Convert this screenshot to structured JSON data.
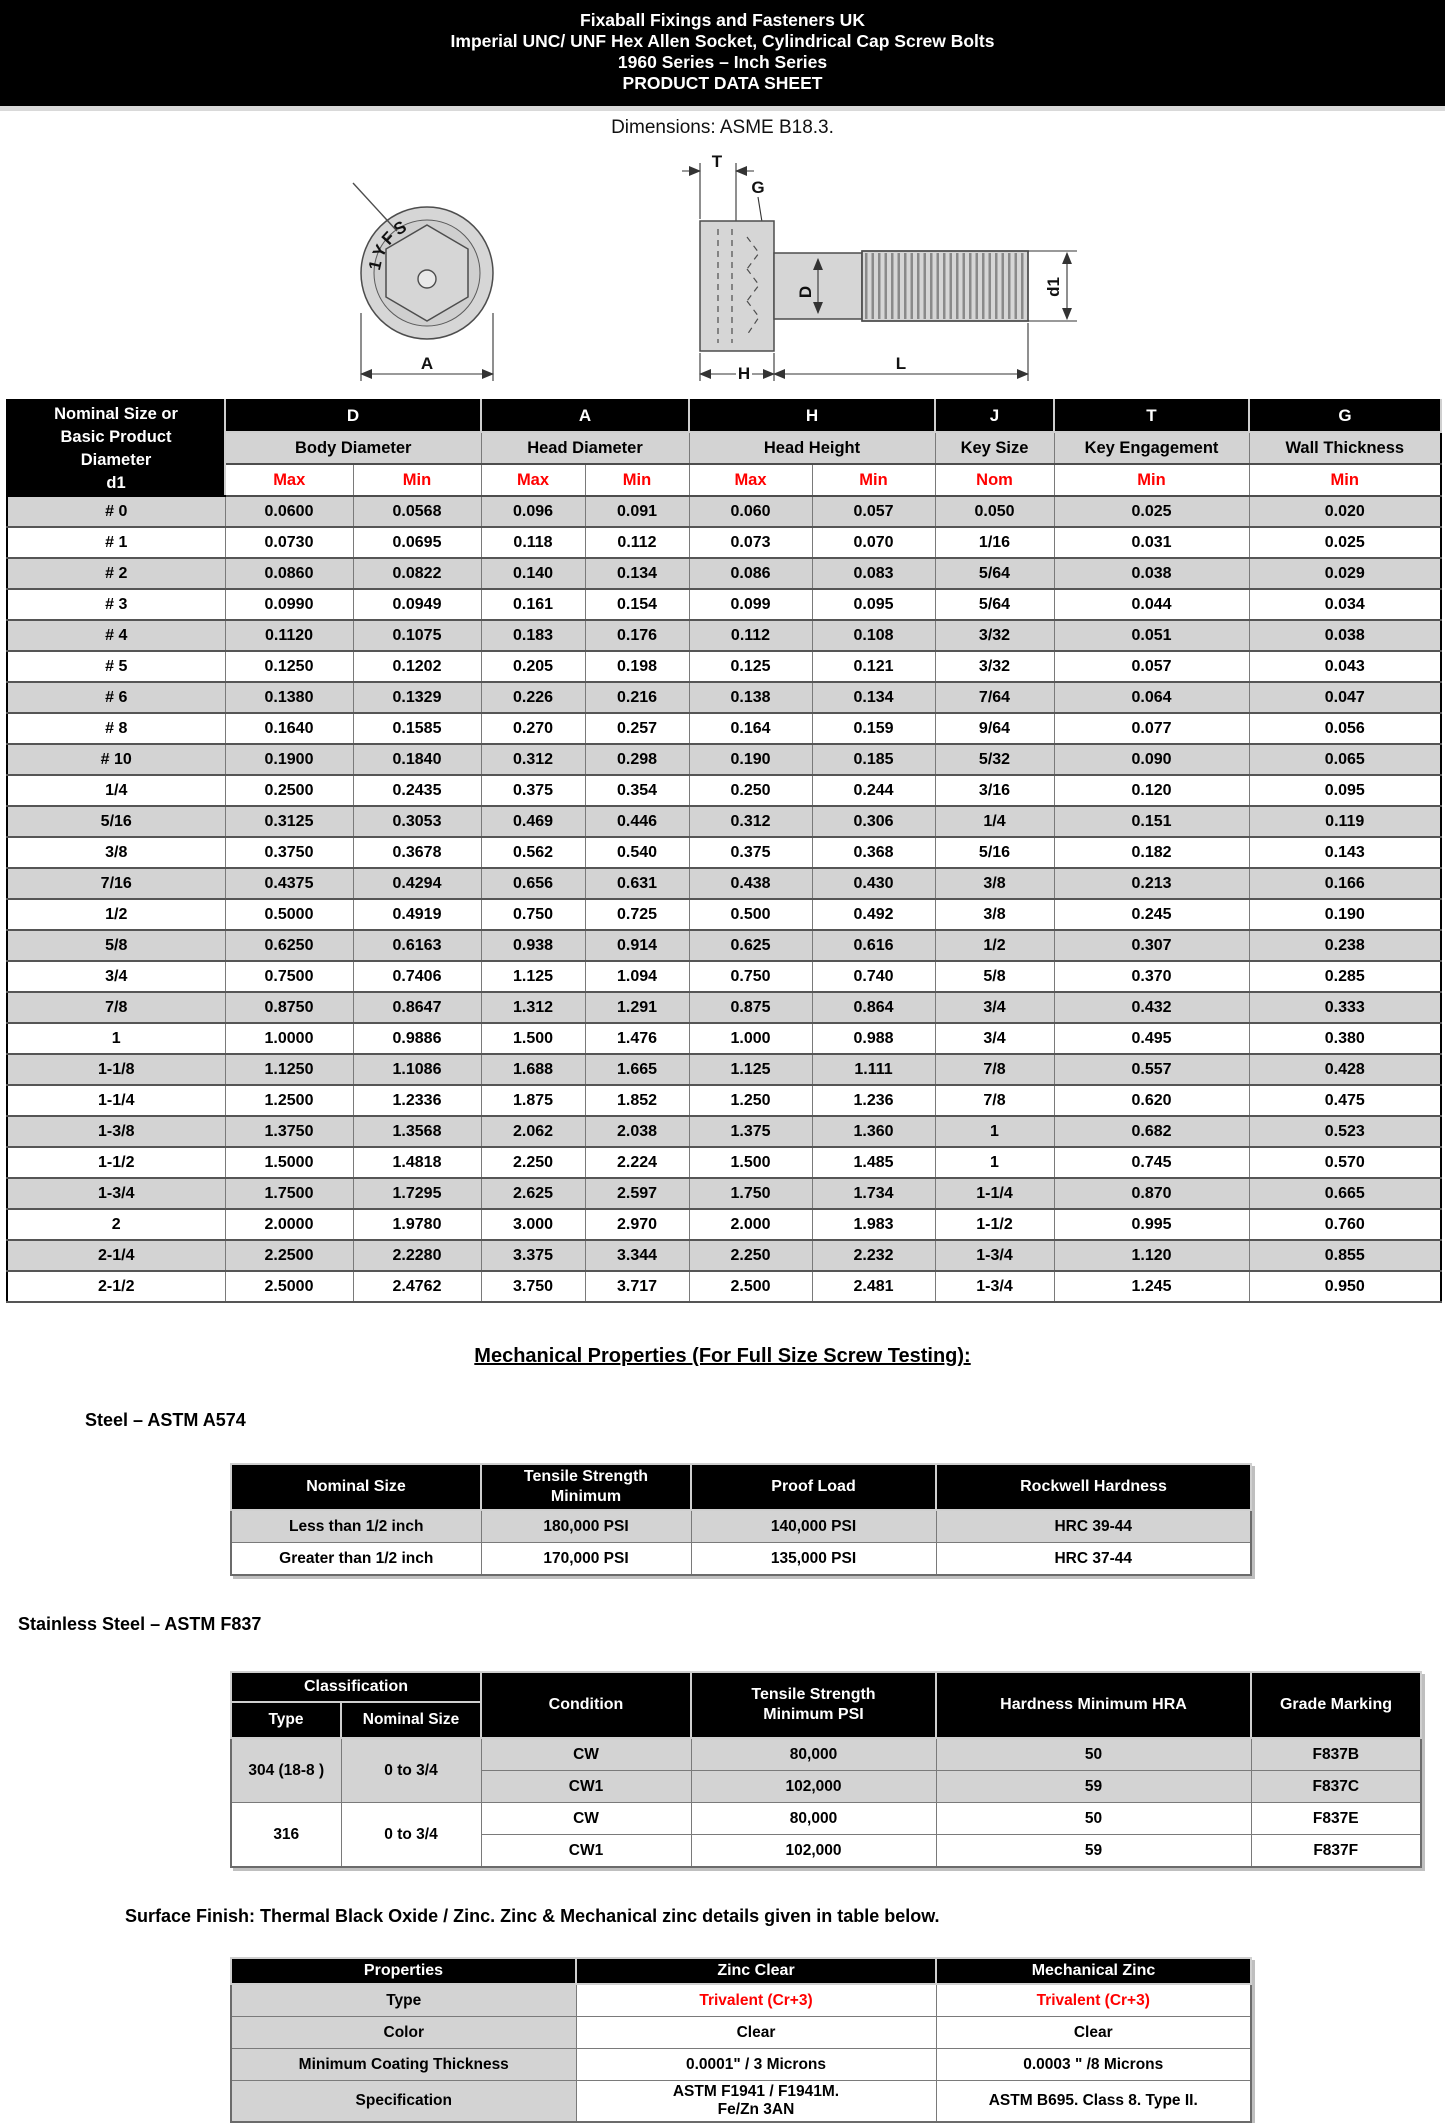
{
  "banner": {
    "lines": [
      "Fixaball Fixings and Fasteners UK",
      "Imperial UNC/ UNF Hex Allen Socket, Cylindrical Cap Screw Bolts",
      "1960 Series – Inch Series",
      "PRODUCT DATA SHEET"
    ]
  },
  "subtitle": "Dimensions: ASME B18.3.",
  "drawing": {
    "head_marking": "1YFS",
    "labels": {
      "t": "T",
      "g": "G",
      "d": "D",
      "d1": "d1",
      "a": "A",
      "h": "H",
      "l": "L"
    }
  },
  "dim_table": {
    "corner_lines": [
      "Nominal Size or",
      "Basic Product",
      "Diameter",
      "d1"
    ],
    "groups": [
      {
        "letter": "D",
        "name": "Body Diameter",
        "subs": [
          "Max",
          "Min"
        ]
      },
      {
        "letter": "A",
        "name": "Head Diameter",
        "subs": [
          "Max",
          "Min"
        ]
      },
      {
        "letter": "H",
        "name": "Head Height",
        "subs": [
          "Max",
          "Min"
        ]
      },
      {
        "letter": "J",
        "name": "Key Size",
        "subs": [
          "Nom"
        ]
      },
      {
        "letter": "T",
        "name": "Key Engagement",
        "subs": [
          "Min"
        ]
      },
      {
        "letter": "G",
        "name": "Wall Thickness",
        "subs": [
          "Min"
        ]
      }
    ],
    "rows": [
      [
        "# 0",
        "0.0600",
        "0.0568",
        "0.096",
        "0.091",
        "0.060",
        "0.057",
        "0.050",
        "0.025",
        "0.020"
      ],
      [
        "# 1",
        "0.0730",
        "0.0695",
        "0.118",
        "0.112",
        "0.073",
        "0.070",
        "1/16",
        "0.031",
        "0.025"
      ],
      [
        "# 2",
        "0.0860",
        "0.0822",
        "0.140",
        "0.134",
        "0.086",
        "0.083",
        "5/64",
        "0.038",
        "0.029"
      ],
      [
        "# 3",
        "0.0990",
        "0.0949",
        "0.161",
        "0.154",
        "0.099",
        "0.095",
        "5/64",
        "0.044",
        "0.034"
      ],
      [
        "# 4",
        "0.1120",
        "0.1075",
        "0.183",
        "0.176",
        "0.112",
        "0.108",
        "3/32",
        "0.051",
        "0.038"
      ],
      [
        "# 5",
        "0.1250",
        "0.1202",
        "0.205",
        "0.198",
        "0.125",
        "0.121",
        "3/32",
        "0.057",
        "0.043"
      ],
      [
        "# 6",
        "0.1380",
        "0.1329",
        "0.226",
        "0.216",
        "0.138",
        "0.134",
        "7/64",
        "0.064",
        "0.047"
      ],
      [
        "# 8",
        "0.1640",
        "0.1585",
        "0.270",
        "0.257",
        "0.164",
        "0.159",
        "9/64",
        "0.077",
        "0.056"
      ],
      [
        "# 10",
        "0.1900",
        "0.1840",
        "0.312",
        "0.298",
        "0.190",
        "0.185",
        "5/32",
        "0.090",
        "0.065"
      ],
      [
        "1/4",
        "0.2500",
        "0.2435",
        "0.375",
        "0.354",
        "0.250",
        "0.244",
        "3/16",
        "0.120",
        "0.095"
      ],
      [
        "5/16",
        "0.3125",
        "0.3053",
        "0.469",
        "0.446",
        "0.312",
        "0.306",
        "1/4",
        "0.151",
        "0.119"
      ],
      [
        "3/8",
        "0.3750",
        "0.3678",
        "0.562",
        "0.540",
        "0.375",
        "0.368",
        "5/16",
        "0.182",
        "0.143"
      ],
      [
        "7/16",
        "0.4375",
        "0.4294",
        "0.656",
        "0.631",
        "0.438",
        "0.430",
        "3/8",
        "0.213",
        "0.166"
      ],
      [
        "1/2",
        "0.5000",
        "0.4919",
        "0.750",
        "0.725",
        "0.500",
        "0.492",
        "3/8",
        "0.245",
        "0.190"
      ],
      [
        "5/8",
        "0.6250",
        "0.6163",
        "0.938",
        "0.914",
        "0.625",
        "0.616",
        "1/2",
        "0.307",
        "0.238"
      ],
      [
        "3/4",
        "0.7500",
        "0.7406",
        "1.125",
        "1.094",
        "0.750",
        "0.740",
        "5/8",
        "0.370",
        "0.285"
      ],
      [
        "7/8",
        "0.8750",
        "0.8647",
        "1.312",
        "1.291",
        "0.875",
        "0.864",
        "3/4",
        "0.432",
        "0.333"
      ],
      [
        "1",
        "1.0000",
        "0.9886",
        "1.500",
        "1.476",
        "1.000",
        "0.988",
        "3/4",
        "0.495",
        "0.380"
      ],
      [
        "1-1/8",
        "1.1250",
        "1.1086",
        "1.688",
        "1.665",
        "1.125",
        "1.111",
        "7/8",
        "0.557",
        "0.428"
      ],
      [
        "1-1/4",
        "1.2500",
        "1.2336",
        "1.875",
        "1.852",
        "1.250",
        "1.236",
        "7/8",
        "0.620",
        "0.475"
      ],
      [
        "1-3/8",
        "1.3750",
        "1.3568",
        "2.062",
        "2.038",
        "1.375",
        "1.360",
        "1",
        "0.682",
        "0.523"
      ],
      [
        "1-1/2",
        "1.5000",
        "1.4818",
        "2.250",
        "2.224",
        "1.500",
        "1.485",
        "1",
        "0.745",
        "0.570"
      ],
      [
        "1-3/4",
        "1.7500",
        "1.7295",
        "2.625",
        "2.597",
        "1.750",
        "1.734",
        "1-1/4",
        "0.870",
        "0.665"
      ],
      [
        "2",
        "2.0000",
        "1.9780",
        "3.000",
        "2.970",
        "2.000",
        "1.983",
        "1-1/2",
        "0.995",
        "0.760"
      ],
      [
        "2-1/4",
        "2.2500",
        "2.2280",
        "3.375",
        "3.344",
        "2.250",
        "2.232",
        "1-3/4",
        "1.120",
        "0.855"
      ],
      [
        "2-1/2",
        "2.5000",
        "2.4762",
        "3.750",
        "3.717",
        "2.500",
        "2.481",
        "1-3/4",
        "1.245",
        "0.950"
      ]
    ]
  },
  "mech_heading": "Mechanical Properties (For Full Size Screw Testing): ",
  "steel": {
    "label": "Steel – ASTM A574",
    "headers": [
      "Nominal Size",
      "Tensile Strength\nMinimum",
      "Proof Load",
      "Rockwell Hardness"
    ],
    "rows": [
      [
        "Less than 1/2 inch",
        "180,000 PSI",
        "140,000 PSI",
        "HRC 39-44"
      ],
      [
        "Greater than 1/2 inch",
        "170,000 PSI",
        "135,000 PSI",
        "HRC 37-44"
      ]
    ]
  },
  "stainless": {
    "label": "Stainless Steel – ASTM F837",
    "headers": {
      "classification": "Classification",
      "type": "Type",
      "nominal_size": "Nominal Size",
      "condition": "Condition",
      "tensile": "Tensile Strength\nMinimum PSI",
      "hardness": "Hardness Minimum HRA",
      "grade": "Grade Marking"
    },
    "groups": [
      {
        "type": "304 (18-8 )",
        "nominal": "0 to 3/4",
        "shaded": true,
        "rows": [
          [
            "CW",
            "80,000",
            "50",
            "F837B"
          ],
          [
            "CW1",
            "102,000",
            "59",
            "F837C"
          ]
        ]
      },
      {
        "type": "316",
        "nominal": "0 to 3/4",
        "shaded": false,
        "rows": [
          [
            "CW",
            "80,000",
            "50",
            "F837E"
          ],
          [
            "CW1",
            "102,000",
            "59",
            "F837F"
          ]
        ]
      }
    ]
  },
  "surface_note": "Surface Finish: Thermal Black Oxide / Zinc. Zinc & Mechanical zinc details given in table below.",
  "surface": {
    "headers": [
      "Properties",
      "Zinc Clear",
      "Mechanical Zinc"
    ],
    "rows": [
      {
        "label": "Type",
        "red": true,
        "values": [
          "Trivalent (Cr+3)",
          "Trivalent (Cr+3)"
        ]
      },
      {
        "label": "Color",
        "red": false,
        "values": [
          "Clear",
          "Clear"
        ]
      },
      {
        "label": "Minimum Coating Thickness",
        "red": false,
        "values": [
          "0.0001\" / 3 Microns",
          "0.0003 \" /8 Microns"
        ]
      },
      {
        "label": "Specification",
        "red": false,
        "values": [
          "ASTM F1941 / F1941M.\nFe/Zn 3AN",
          "ASTM B695. Class 8. Type II."
        ]
      }
    ]
  },
  "colors": {
    "header_bg": "#000000",
    "row_shade": "#d3d3d3",
    "accent_red": "#ff0000"
  }
}
